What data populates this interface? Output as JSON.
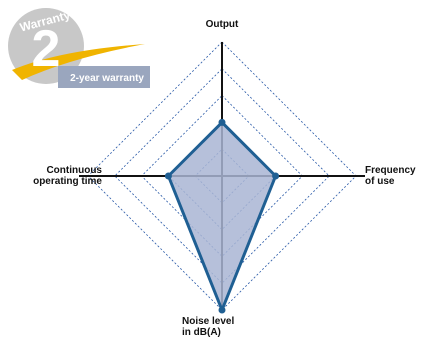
{
  "badge": {
    "word": "Warranty",
    "number": "2",
    "caption": "2-year warranty",
    "colors": {
      "seal": "#c8c8c8",
      "swoosh": "#f0b400",
      "banner": "#9aa6be",
      "text": "#ffffff"
    }
  },
  "chart_data": {
    "type": "radar",
    "axes": [
      {
        "key": "output",
        "label": "Output",
        "direction": "top",
        "value": 2
      },
      {
        "key": "frequency",
        "label": "Frequency\nof use",
        "direction": "right",
        "value": 2
      },
      {
        "key": "noise",
        "label": "Noise level\nin dB(A)",
        "direction": "bottom",
        "value": 5
      },
      {
        "key": "continuous",
        "label": "Continuous\noperating time",
        "direction": "left",
        "value": 2
      }
    ],
    "scale": {
      "min": 0,
      "max": 5,
      "rings": 5
    },
    "grid": true,
    "colors": {
      "fill": "#a9b5d3",
      "stroke": "#1f5f93",
      "grid": "#2a5aa8",
      "axis": "#111111"
    }
  }
}
